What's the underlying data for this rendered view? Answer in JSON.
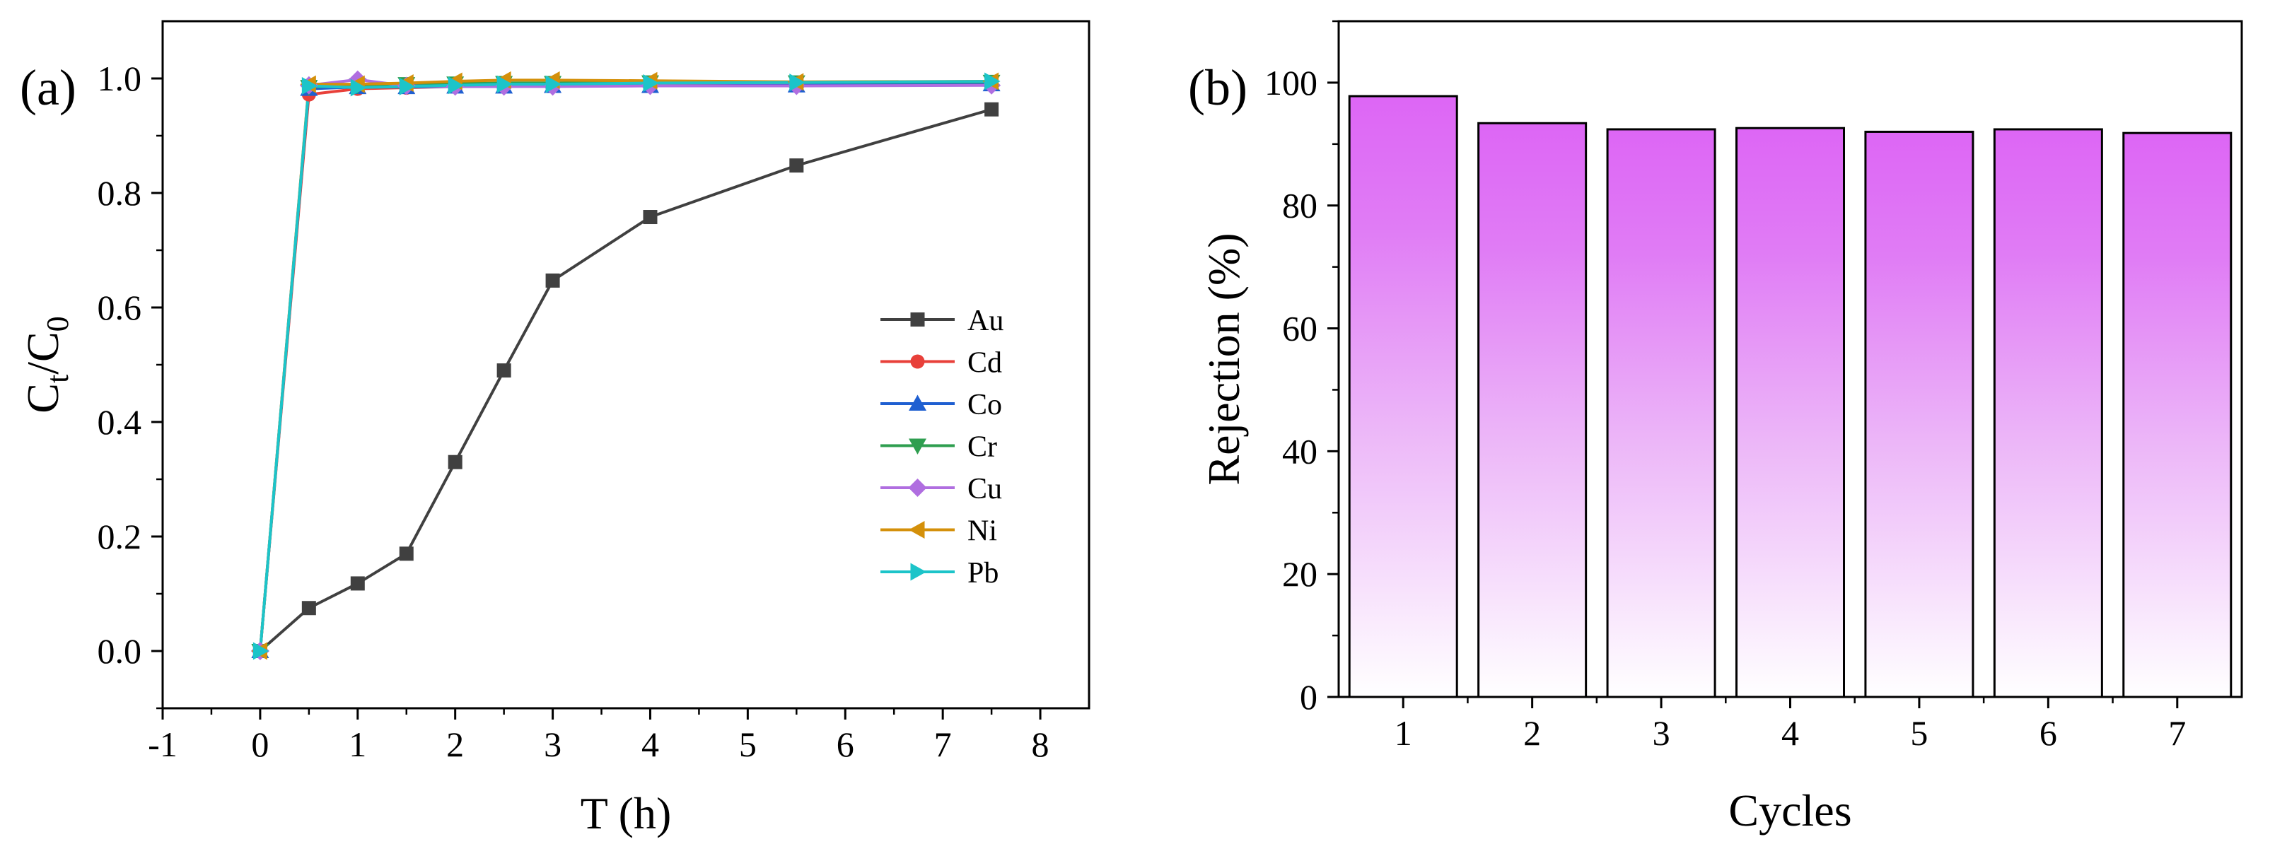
{
  "chart_data": [
    {
      "type": "line",
      "panel_label": "(a)",
      "xlabel": "T (h)",
      "ylabel": "C",
      "ylabel_sub1": "t",
      "ylabel_slash": "/C",
      "ylabel_sub2": "0",
      "xlim": [
        -1,
        8.5
      ],
      "ylim": [
        -0.1,
        1.1
      ],
      "xticks": [
        -1,
        0,
        1,
        2,
        3,
        4,
        5,
        6,
        7,
        8
      ],
      "xtick_labels": [
        "-1",
        "0",
        "1",
        "2",
        "3",
        "4",
        "5",
        "6",
        "7",
        "8"
      ],
      "yticks": [
        0,
        0.2,
        0.4,
        0.6,
        0.8,
        1.0
      ],
      "ytick_labels": [
        "0.0",
        "0.2",
        "0.4",
        "0.6",
        "0.8",
        "1.0"
      ],
      "legend_position": "center-right",
      "x": [
        0,
        0.5,
        1,
        1.5,
        2,
        2.5,
        3,
        4,
        5.5,
        7.5
      ],
      "series": [
        {
          "name": "Au",
          "color": "#404040",
          "marker": "square",
          "values": [
            0,
            0.075,
            0.118,
            0.17,
            0.33,
            0.49,
            0.647,
            0.758,
            0.848,
            0.946
          ]
        },
        {
          "name": "Cd",
          "color": "#e8403a",
          "marker": "circle",
          "values": [
            0,
            0.972,
            0.982,
            0.984,
            0.986,
            0.987,
            0.987,
            0.988,
            0.988,
            0.99
          ]
        },
        {
          "name": "Co",
          "color": "#1f5fd1",
          "marker": "triangle-up",
          "values": [
            0,
            0.982,
            0.985,
            0.985,
            0.986,
            0.986,
            0.987,
            0.987,
            0.988,
            0.99
          ]
        },
        {
          "name": "Cr",
          "color": "#2e9e4f",
          "marker": "triangle-down",
          "values": [
            0,
            0.985,
            0.988,
            0.99,
            0.991,
            0.992,
            0.992,
            0.993,
            0.993,
            0.994
          ]
        },
        {
          "name": "Cu",
          "color": "#b06ee0",
          "marker": "diamond",
          "values": [
            0,
            0.988,
            0.998,
            0.987,
            0.986,
            0.986,
            0.986,
            0.987,
            0.987,
            0.988
          ]
        },
        {
          "name": "Ni",
          "color": "#d4900a",
          "marker": "triangle-left",
          "values": [
            0,
            0.99,
            0.99,
            0.992,
            0.995,
            0.997,
            0.997,
            0.996,
            0.994,
            0.995
          ]
        },
        {
          "name": "Pb",
          "color": "#1cc4c9",
          "marker": "triangle-right",
          "values": [
            0,
            0.987,
            0.984,
            0.986,
            0.988,
            0.99,
            0.99,
            0.992,
            0.993,
            0.995
          ]
        }
      ]
    },
    {
      "type": "bar",
      "panel_label": "(b)",
      "xlabel": "Cycles",
      "ylabel": "Rejection (%)",
      "categories": [
        "1",
        "2",
        "3",
        "4",
        "5",
        "6",
        "7"
      ],
      "values": [
        97.8,
        93.4,
        92.4,
        92.6,
        92.0,
        92.4,
        91.8
      ],
      "ylim": [
        0,
        110
      ],
      "yticks": [
        0,
        20,
        40,
        60,
        80,
        100
      ],
      "ytick_labels": [
        "0",
        "20",
        "40",
        "60",
        "80",
        "100"
      ],
      "bar_color_top": "#dd66f5",
      "bar_color_bottom": "#ffffff"
    }
  ]
}
